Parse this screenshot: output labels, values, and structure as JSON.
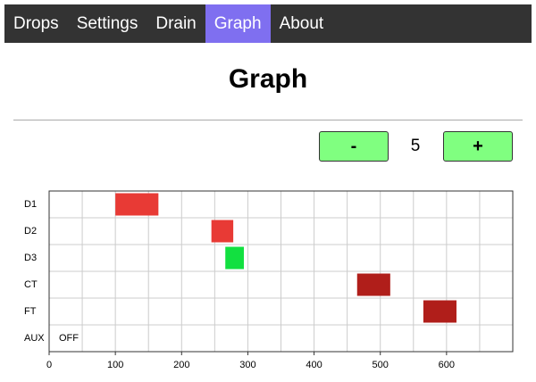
{
  "nav": {
    "items": [
      "Drops",
      "Settings",
      "Drain",
      "Graph",
      "About"
    ],
    "active": 3
  },
  "header": {
    "title": "Graph"
  },
  "controls": {
    "minus": "-",
    "value": 5,
    "plus": "+"
  },
  "chart_data": {
    "type": "timeline",
    "rows": [
      {
        "name": "D1",
        "start": 100,
        "end": 165,
        "color": "#e83a35"
      },
      {
        "name": "D2",
        "start": 245,
        "end": 278,
        "color": "#e83a35"
      },
      {
        "name": "D3",
        "start": 266,
        "end": 294,
        "color": "#12e040"
      },
      {
        "name": "CT",
        "start": 465,
        "end": 515,
        "color": "#b01e1a"
      },
      {
        "name": "FT",
        "start": 565,
        "end": 615,
        "color": "#b01e1a"
      },
      {
        "name": "AUX",
        "status": "OFF"
      }
    ],
    "xlim": [
      0,
      700
    ],
    "xticks": [
      0,
      100,
      200,
      300,
      400,
      500,
      600
    ],
    "x_gridlines": [
      50,
      100,
      150,
      200,
      250,
      300,
      350,
      400,
      450,
      500,
      550,
      600,
      650
    ],
    "grid": true
  }
}
